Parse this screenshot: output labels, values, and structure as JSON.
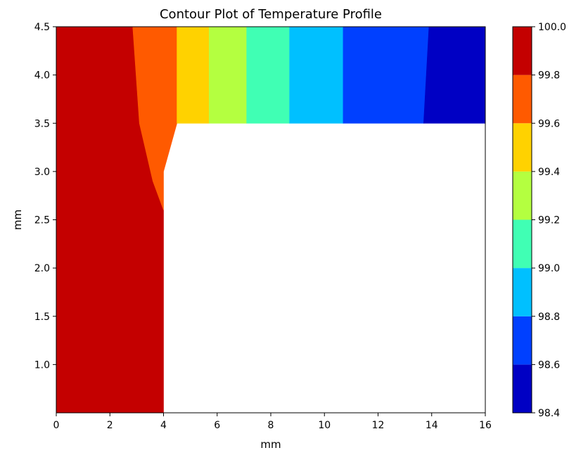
{
  "chart_data": {
    "type": "contour",
    "title": "Contour Plot of Temperature Profile",
    "xlabel": "mm",
    "ylabel": "mm",
    "xlim": [
      0,
      16
    ],
    "ylim": [
      0.5,
      4.5
    ],
    "x_ticks": [
      "0",
      "2",
      "4",
      "6",
      "8",
      "10",
      "12",
      "14",
      "16"
    ],
    "y_ticks": [
      "1.0",
      "1.5",
      "2.0",
      "2.5",
      "3.0",
      "3.5",
      "4.0",
      "4.5"
    ],
    "colorbar": {
      "min": 98.4,
      "max": 100.0,
      "ticks": [
        "98.4",
        "98.6",
        "98.8",
        "99.0",
        "99.2",
        "99.4",
        "99.6",
        "99.8",
        "100.0"
      ],
      "levels": [
        {
          "range": [
            98.4,
            98.6
          ],
          "color": "#0000c4"
        },
        {
          "range": [
            98.6,
            98.8
          ],
          "color": "#0040ff"
        },
        {
          "range": [
            98.8,
            99.0
          ],
          "color": "#00c0ff"
        },
        {
          "range": [
            99.0,
            99.2
          ],
          "color": "#40ffb4"
        },
        {
          "range": [
            99.2,
            99.4
          ],
          "color": "#b4ff40"
        },
        {
          "range": [
            99.4,
            99.6
          ],
          "color": "#ffd200"
        },
        {
          "range": [
            99.6,
            99.8
          ],
          "color": "#ff5a00"
        },
        {
          "range": [
            99.8,
            100.0
          ],
          "color": "#c40000"
        }
      ]
    },
    "domain_shape": "L-shaped: vertical leg x 0–4, y 0.5–4.5; horizontal leg x 0–16, y 3.5–4.5",
    "regions": [
      {
        "level": "99.8–100.0",
        "polygon": [
          [
            0,
            0.5
          ],
          [
            4,
            0.5
          ],
          [
            4,
            2.6
          ],
          [
            3.6,
            2.9
          ],
          [
            3.1,
            3.5
          ],
          [
            2.85,
            4.5
          ],
          [
            0,
            4.5
          ]
        ]
      },
      {
        "level": "99.6–99.8",
        "polygon": [
          [
            2.85,
            4.5
          ],
          [
            3.1,
            3.5
          ],
          [
            3.6,
            2.9
          ],
          [
            4,
            2.6
          ],
          [
            4,
            3.0
          ],
          [
            4.5,
            3.5
          ],
          [
            4.5,
            4.5
          ]
        ]
      },
      {
        "level": "99.4–99.6",
        "polygon": [
          [
            4.5,
            3.5
          ],
          [
            5.7,
            3.5
          ],
          [
            5.7,
            4.5
          ],
          [
            4.5,
            4.5
          ]
        ]
      },
      {
        "level": "99.2–99.4",
        "polygon": [
          [
            5.7,
            3.5
          ],
          [
            7.1,
            3.5
          ],
          [
            7.1,
            4.5
          ],
          [
            5.7,
            4.5
          ]
        ]
      },
      {
        "level": "99.0–99.2",
        "polygon": [
          [
            7.1,
            3.5
          ],
          [
            8.7,
            3.5
          ],
          [
            8.7,
            4.5
          ],
          [
            7.1,
            4.5
          ]
        ]
      },
      {
        "level": "98.8–99.0",
        "polygon": [
          [
            8.7,
            3.5
          ],
          [
            10.7,
            3.5
          ],
          [
            10.7,
            4.5
          ],
          [
            8.7,
            4.5
          ]
        ]
      },
      {
        "level": "98.6–98.8",
        "polygon": [
          [
            10.7,
            3.5
          ],
          [
            13.7,
            3.5
          ],
          [
            13.9,
            4.5
          ],
          [
            10.7,
            4.5
          ]
        ]
      },
      {
        "level": "98.4–98.6",
        "polygon": [
          [
            13.7,
            3.5
          ],
          [
            16,
            3.5
          ],
          [
            16,
            4.5
          ],
          [
            13.9,
            4.5
          ]
        ]
      }
    ],
    "grid": false,
    "legend": "colorbar-right"
  }
}
